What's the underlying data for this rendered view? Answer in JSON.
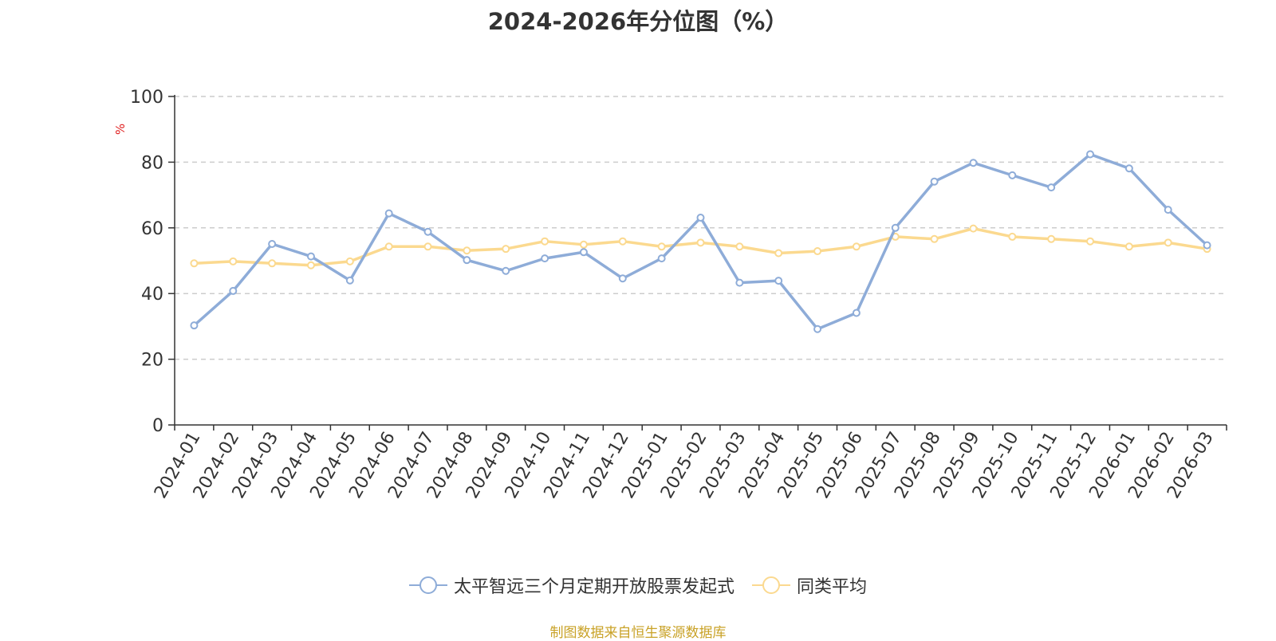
{
  "chart_data": {
    "type": "line",
    "title": "2024-2026年分位图（%）",
    "ylabel": "%",
    "ylim": [
      0,
      100
    ],
    "yticks": [
      0,
      20,
      40,
      60,
      80,
      100
    ],
    "grid": true,
    "legend_position": "bottom",
    "categories": [
      "2024-01",
      "2024-02",
      "2024-03",
      "2024-04",
      "2024-05",
      "2024-06",
      "2024-07",
      "2024-08",
      "2024-09",
      "2024-10",
      "2024-11",
      "2024-12",
      "2025-01",
      "2025-02",
      "2025-03",
      "2025-04",
      "2025-05",
      "2025-06",
      "2025-07",
      "2025-08",
      "2025-09",
      "2025-10",
      "2025-11",
      "2025-12",
      "2026-01",
      "2026-02",
      "2026-03"
    ],
    "series": [
      {
        "name": "太平智远三个月定期开放股票发起式",
        "color": "#8eacd8",
        "values": [
          30.3,
          40.8,
          55.1,
          51.3,
          44.0,
          64.4,
          58.8,
          50.2,
          46.9,
          50.7,
          52.6,
          44.6,
          50.7,
          63.1,
          43.3,
          43.9,
          29.2,
          34.1,
          60.0,
          74.1,
          79.8,
          76.0,
          72.3,
          82.4,
          78.1,
          65.5,
          54.7
        ]
      },
      {
        "name": "同类平均",
        "color": "#fbd98f",
        "values": [
          49.2,
          49.8,
          49.2,
          48.6,
          49.8,
          54.3,
          54.3,
          53.1,
          53.6,
          55.9,
          54.9,
          55.9,
          54.3,
          55.5,
          54.3,
          52.3,
          52.9,
          54.3,
          57.3,
          56.6,
          59.8,
          57.3,
          56.6,
          55.9,
          54.3,
          55.5,
          53.6
        ]
      }
    ]
  },
  "legend": {
    "item_0": "太平智远三个月定期开放股票发起式",
    "item_1": "同类平均"
  },
  "source_note": "制图数据来自恒生聚源数据库"
}
